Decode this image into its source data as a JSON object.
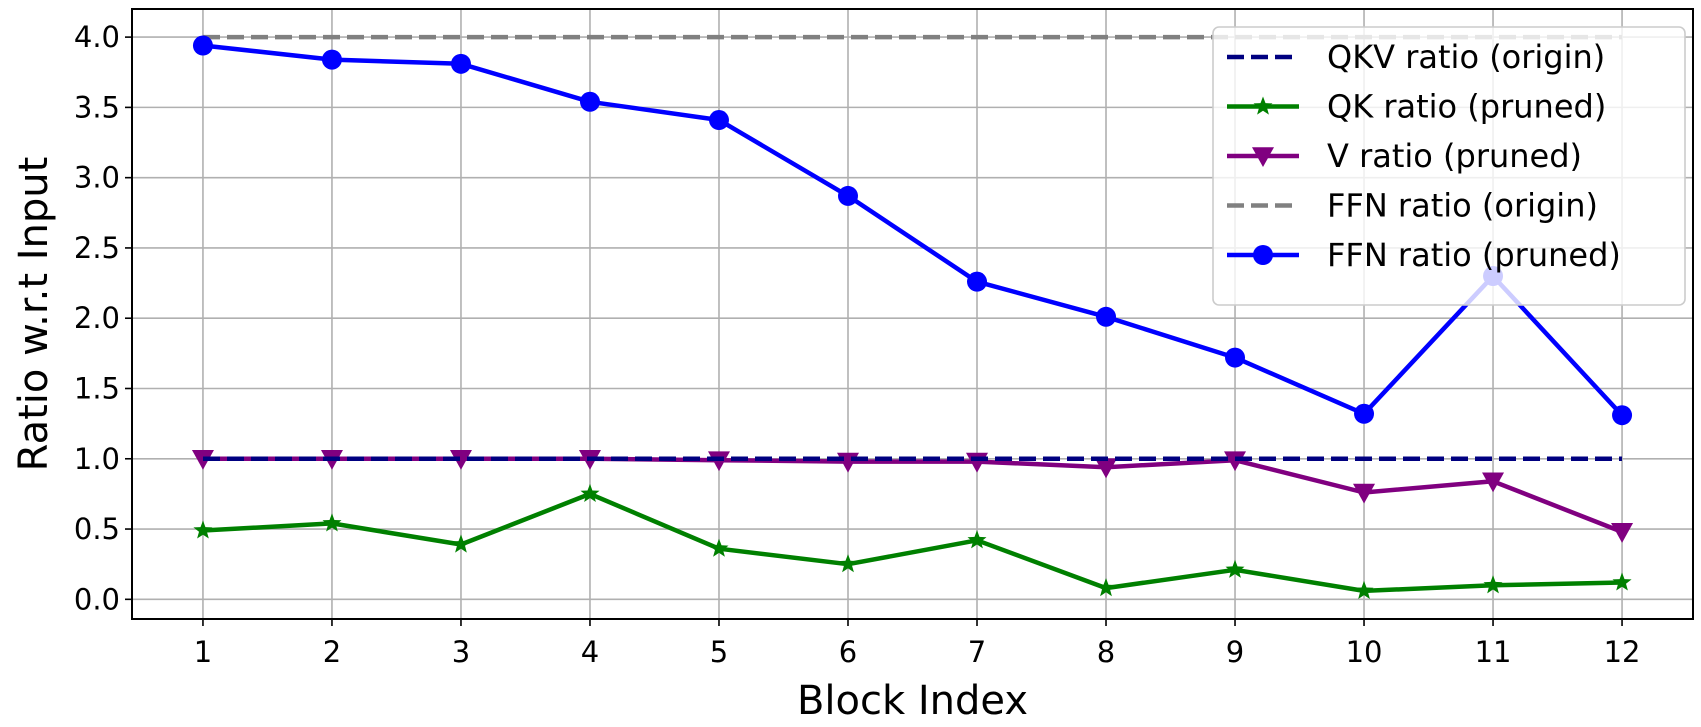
{
  "chart_data": {
    "type": "line",
    "title": "",
    "xlabel": "Block Index",
    "ylabel": "Ratio w.r.t Input",
    "x": [
      1,
      2,
      3,
      4,
      5,
      6,
      7,
      8,
      9,
      10,
      11,
      12
    ],
    "xlim": [
      0.45,
      12.55
    ],
    "ylim": [
      -0.14,
      4.2
    ],
    "yticks": [
      0.0,
      0.5,
      1.0,
      1.5,
      2.0,
      2.5,
      3.0,
      3.5,
      4.0
    ],
    "ytick_labels": [
      "0.0",
      "0.5",
      "1.0",
      "1.5",
      "2.0",
      "2.5",
      "3.0",
      "3.5",
      "4.0"
    ],
    "xtick_labels": [
      "1",
      "2",
      "3",
      "4",
      "5",
      "6",
      "7",
      "8",
      "9",
      "10",
      "11",
      "12"
    ],
    "grid": true,
    "legend_position": "top-right",
    "series": [
      {
        "name": "QKV ratio (origin)",
        "color": "#000080",
        "linestyle": "dashed",
        "marker": "none",
        "values": [
          1.0,
          1.0,
          1.0,
          1.0,
          1.0,
          1.0,
          1.0,
          1.0,
          1.0,
          1.0,
          1.0,
          1.0
        ]
      },
      {
        "name": "QK ratio (pruned)",
        "color": "#008000",
        "linestyle": "solid",
        "marker": "star",
        "values": [
          0.49,
          0.54,
          0.39,
          0.75,
          0.36,
          0.25,
          0.42,
          0.08,
          0.21,
          0.06,
          0.1,
          0.12
        ]
      },
      {
        "name": "V ratio (pruned)",
        "color": "#800080",
        "linestyle": "solid",
        "marker": "triangle-down",
        "values": [
          1.0,
          1.0,
          1.0,
          1.0,
          0.99,
          0.98,
          0.98,
          0.94,
          0.99,
          0.76,
          0.84,
          0.48
        ]
      },
      {
        "name": "FFN ratio (origin)",
        "color": "#808080",
        "linestyle": "dashed",
        "marker": "none",
        "values": [
          4.0,
          4.0,
          4.0,
          4.0,
          4.0,
          4.0,
          4.0,
          4.0,
          4.0,
          4.0,
          4.0,
          4.0
        ]
      },
      {
        "name": "FFN ratio (pruned)",
        "color": "#0000ff",
        "linestyle": "solid",
        "marker": "circle",
        "values": [
          3.94,
          3.84,
          3.81,
          3.54,
          3.41,
          2.87,
          2.26,
          2.01,
          1.72,
          1.32,
          2.3,
          1.31
        ]
      }
    ]
  }
}
